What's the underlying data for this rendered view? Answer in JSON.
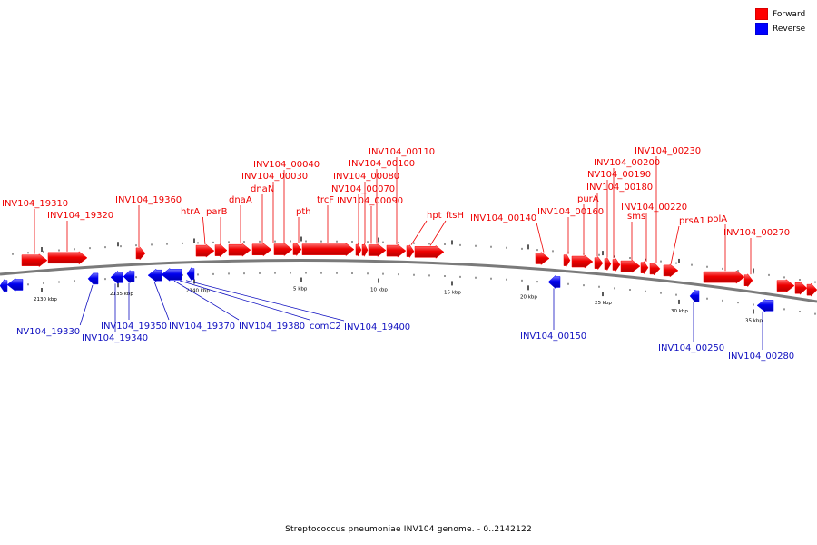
{
  "colors": {
    "forward": "#ff0000",
    "reverse": "#0000ff",
    "backbone": "#7a7a7a",
    "ticks": "#000000"
  },
  "legend": [
    {
      "label": "Forward",
      "color": "#ff0000"
    },
    {
      "label": "Reverse",
      "color": "#0000ff"
    }
  ],
  "caption": "Streptococcus pneumoniae INV104 genome. - 0..2142122",
  "tick_labels": [
    "2130 kbp",
    "2135 kbp",
    "2140 kbp",
    "5 kbp",
    "10 kbp",
    "15 kbp",
    "20 kbp",
    "25 kbp",
    "30 kbp",
    "35 kbp"
  ],
  "forward_genes": [
    "INV104_19310",
    "INV104_19320",
    "INV104_19360",
    "htrA",
    "parB",
    "dnaA",
    "dnaN",
    "INV104_00030",
    "INV104_00040",
    "pth",
    "trcF",
    "INV104_00070",
    "INV104_00080",
    "INV104_00090",
    "INV104_00100",
    "INV104_00110",
    "hpt",
    "ftsH",
    "INV104_00140",
    "INV104_00160",
    "purA",
    "INV104_00180",
    "INV104_00190",
    "INV104_00200",
    "sms",
    "INV104_00220",
    "INV104_00230",
    "prsA1",
    "polA",
    "INV104_00270"
  ],
  "reverse_genes": [
    "INV104_19330",
    "INV104_19340",
    "INV104_19350",
    "INV104_19370",
    "INV104_19380",
    "comC2",
    "INV104_19400",
    "INV104_00150",
    "INV104_00250",
    "INV104_00280"
  ]
}
